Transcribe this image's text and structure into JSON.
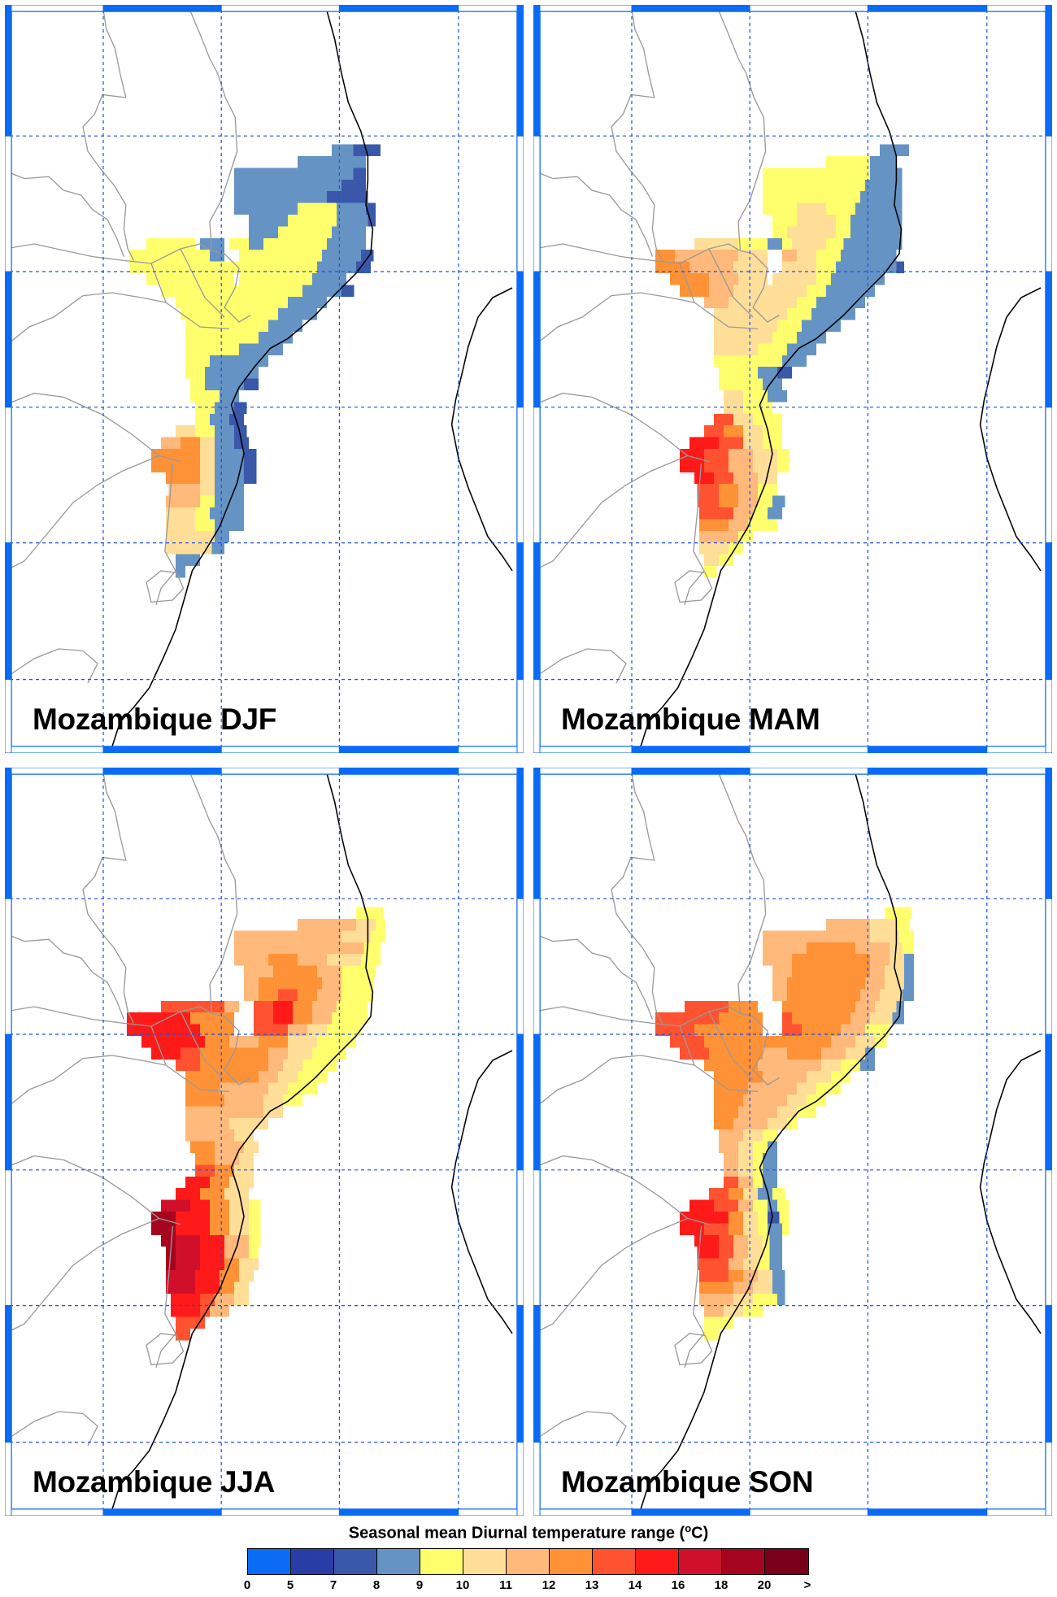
{
  "panels": [
    {
      "id": "djf",
      "label": "Mozambique DJF"
    },
    {
      "id": "mam",
      "label": "Mozambique MAM"
    },
    {
      "id": "jja",
      "label": "Mozambique JJA"
    },
    {
      "id": "son",
      "label": "Mozambique SON"
    }
  ],
  "legend": {
    "title_prefix": "Seasonal mean Diurnal temperature range (",
    "title_unit_sup": "o",
    "title_suffix": "C)",
    "colors": [
      "#0a6bf5",
      "#283da6",
      "#3a58aa",
      "#6593c4",
      "#ffff6e",
      "#ffde98",
      "#ffb97a",
      "#ff9236",
      "#ff5230",
      "#ff1a1a",
      "#d0102a",
      "#a5051e",
      "#780018"
    ],
    "ticks": [
      "0",
      "5",
      "7",
      "8",
      "9",
      "10",
      "11",
      "12",
      "13",
      "14",
      "16",
      "18",
      "20",
      ">"
    ]
  },
  "map_style": {
    "frame_color": "#0a6bf5",
    "grid_color": "#1a4ff0",
    "border_color": "#999999",
    "coast_color": "#000000"
  }
}
